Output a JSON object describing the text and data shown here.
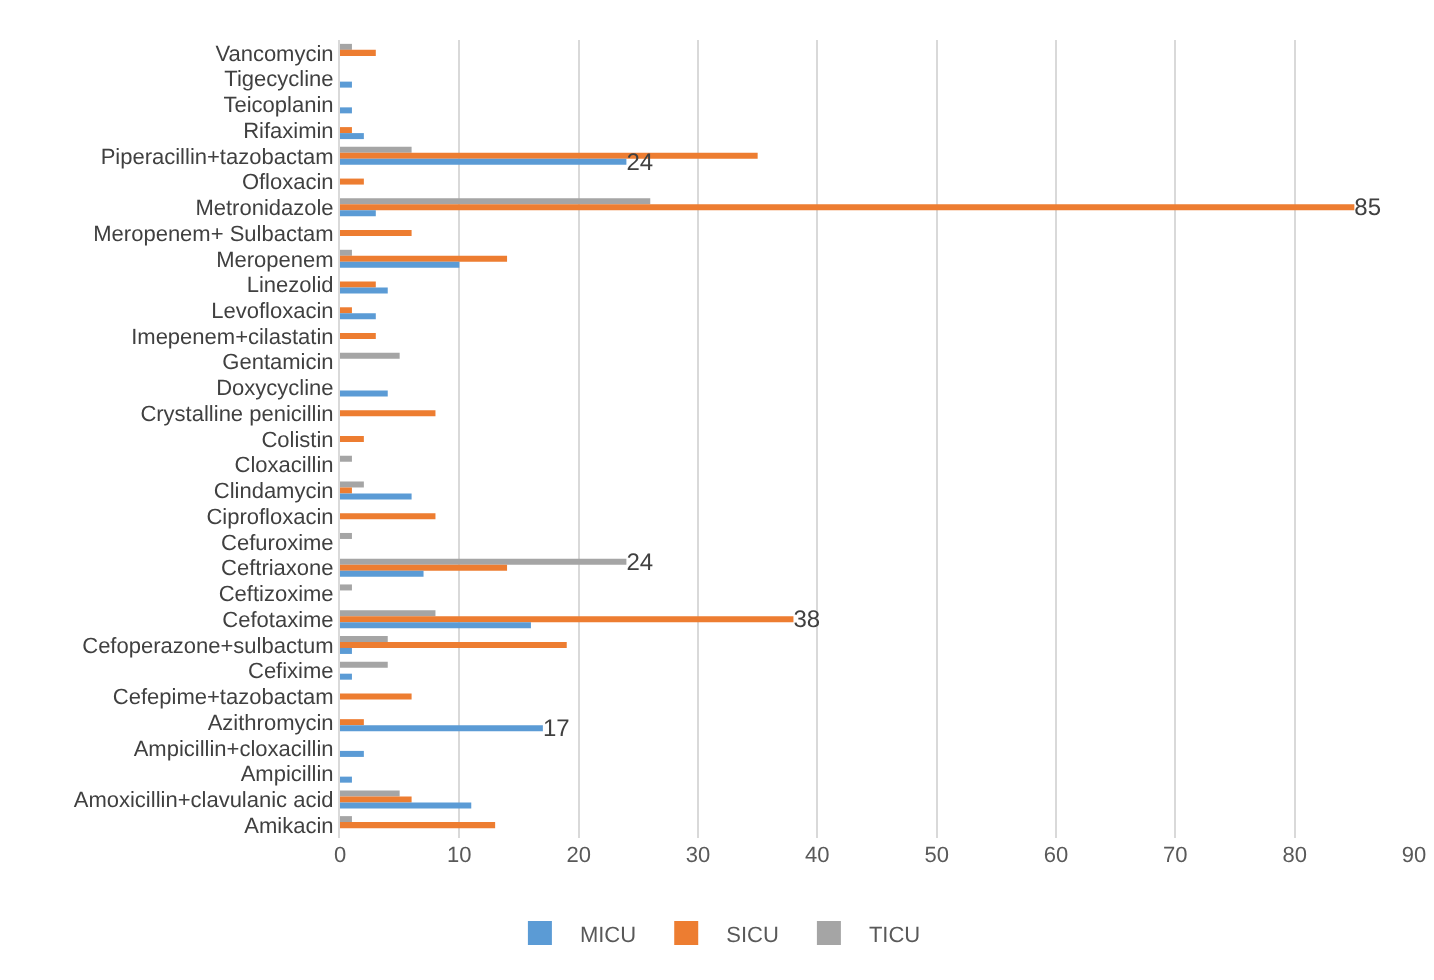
{
  "chart_data": {
    "type": "bar",
    "orientation": "horizontal",
    "categories": [
      "Vancomycin",
      "Tigecycline",
      "Teicoplanin",
      "Rifaximin",
      "Piperacillin+tazobactam",
      "Ofloxacin",
      "Metronidazole",
      "Meropenem+ Sulbactam",
      "Meropenem",
      "Linezolid",
      "Levofloxacin",
      "Imepenem+cilastatin",
      "Gentamicin",
      "Doxycycline",
      "Crystalline penicillin",
      "Colistin",
      "Cloxacillin",
      "Clindamycin",
      "Ciprofloxacin",
      "Cefuroxime",
      "Ceftriaxone",
      "Ceftizoxime",
      "Cefotaxime",
      "Cefoperazone+sulbactum",
      "Cefixime",
      "Cefepime+tazobactam",
      "Azithromycin",
      "Ampicillin+cloxacillin",
      "Ampicillin",
      "Amoxicillin+clavulanic acid",
      "Amikacin"
    ],
    "series": [
      {
        "name": "MICU",
        "color": "#5b9bd5",
        "values": [
          0,
          1,
          1,
          2,
          24,
          0,
          3,
          0,
          10,
          4,
          3,
          0,
          0,
          4,
          0,
          0,
          0,
          6,
          0,
          0,
          7,
          0,
          16,
          1,
          1,
          0,
          17,
          2,
          1,
          11,
          0
        ],
        "value_labels": [
          null,
          null,
          null,
          null,
          "24",
          null,
          null,
          null,
          null,
          null,
          null,
          null,
          null,
          null,
          null,
          null,
          null,
          null,
          null,
          null,
          null,
          null,
          null,
          null,
          null,
          null,
          "17",
          null,
          null,
          null,
          null
        ]
      },
      {
        "name": "SICU",
        "color": "#ed7d31",
        "values": [
          3,
          0,
          0,
          1,
          35,
          2,
          85,
          6,
          14,
          3,
          1,
          3,
          0,
          0,
          8,
          2,
          0,
          1,
          8,
          0,
          14,
          0,
          38,
          19,
          0,
          6,
          2,
          0,
          0,
          6,
          13
        ],
        "value_labels": [
          null,
          null,
          null,
          null,
          null,
          null,
          "85",
          null,
          null,
          null,
          null,
          null,
          null,
          null,
          null,
          null,
          null,
          null,
          null,
          null,
          null,
          null,
          "38",
          null,
          null,
          null,
          null,
          null,
          null,
          null,
          null
        ]
      },
      {
        "name": "TICU",
        "color": "#a5a5a5",
        "values": [
          1,
          0,
          0,
          0,
          6,
          0,
          26,
          0,
          1,
          0,
          0,
          0,
          5,
          0,
          0,
          0,
          1,
          2,
          0,
          1,
          24,
          1,
          8,
          4,
          4,
          0,
          0,
          0,
          0,
          5,
          1
        ],
        "value_labels": [
          null,
          null,
          null,
          null,
          null,
          null,
          null,
          null,
          null,
          null,
          null,
          null,
          null,
          null,
          null,
          null,
          null,
          null,
          null,
          null,
          "24",
          null,
          null,
          null,
          null,
          null,
          null,
          null,
          null,
          null,
          null
        ]
      }
    ],
    "xlim": [
      0,
      90
    ],
    "xticks": [
      0,
      10,
      20,
      30,
      40,
      50,
      60,
      70,
      80,
      90
    ],
    "grid": "x",
    "legend": "bottom"
  }
}
